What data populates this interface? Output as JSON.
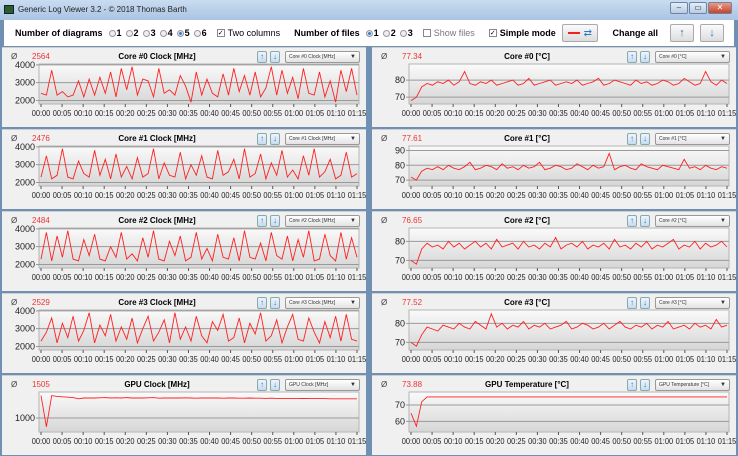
{
  "window": {
    "title": "Generic Log Viewer 3.2 - © 2018 Thomas Barth",
    "buttons": [
      "–",
      "▭",
      "✕"
    ]
  },
  "toolbar": {
    "diagrams_label": "Number of diagrams",
    "diagram_options": [
      "1",
      "2",
      "3",
      "4",
      "5",
      "6"
    ],
    "diagrams_selected": "5",
    "two_columns_label": "Two columns",
    "two_columns_checked": true,
    "files_label": "Number of files",
    "file_options": [
      "1",
      "2",
      "3"
    ],
    "files_selected": "1",
    "show_files_label": "Show files",
    "show_files_checked": false,
    "simple_mode_label": "Simple mode",
    "simple_mode_checked": true,
    "change_all_label": "Change all"
  },
  "avg_symbol": "Ø",
  "x_ticks": [
    "00:00",
    "00:05",
    "00:10",
    "00:15",
    "00:20",
    "00:25",
    "00:30",
    "00:35",
    "00:40",
    "00:45",
    "00:50",
    "00:55",
    "01:00",
    "01:05",
    "01:10",
    "01:15"
  ],
  "chart_data": [
    {
      "type": "line",
      "title": "Core #0 Clock [MHz]",
      "avg": "2564",
      "selector": "Core #0 Clock [MHz]",
      "ylim": [
        1800,
        4050
      ],
      "yticks": [
        2000,
        3000,
        4000
      ],
      "values": [
        2400,
        2300,
        3700,
        2300,
        2500,
        2200,
        2300,
        3100,
        2200,
        3200,
        2300,
        3300,
        2400,
        3600,
        2200,
        3800,
        2600,
        3900,
        2300,
        3200,
        3100,
        2200,
        3800,
        2400,
        2600,
        2300,
        3400,
        2800,
        1900,
        3600,
        2300,
        3200,
        2400,
        2200,
        3500,
        2300,
        3800,
        2500,
        3400,
        2300,
        3600,
        2200,
        2700,
        3900,
        2300,
        3700,
        2400,
        3300,
        2100,
        3800,
        2400,
        2300,
        3600,
        2200,
        3100,
        1900,
        3700,
        2500,
        3800,
        2300
      ]
    },
    {
      "type": "line",
      "title": "Core #0 [°C]",
      "avg": "77.34",
      "selector": "Core #0 [°C]",
      "ylim": [
        66,
        89.4
      ],
      "yticks": [
        70,
        80
      ],
      "values": [
        68,
        70,
        76,
        78,
        77,
        79,
        78,
        80,
        77,
        79,
        85,
        78,
        77,
        79,
        78,
        80,
        77,
        78,
        79,
        80,
        77,
        78,
        81,
        77,
        78,
        79,
        80,
        77,
        78,
        79,
        78,
        80,
        77,
        78,
        79,
        81,
        77,
        78,
        80,
        79,
        78,
        77,
        80,
        78,
        79,
        77,
        78,
        80,
        79,
        77,
        78,
        81,
        79,
        77,
        78,
        85,
        79,
        77,
        80,
        78
      ]
    },
    {
      "type": "line",
      "title": "Core #1 Clock [MHz]",
      "avg": "2476",
      "selector": "Core #1 Clock [MHz]",
      "ylim": [
        1800,
        4050
      ],
      "yticks": [
        2000,
        3000,
        4000
      ],
      "values": [
        2300,
        3500,
        2200,
        2400,
        3900,
        2300,
        2200,
        3200,
        2500,
        2300,
        3800,
        2400,
        3300,
        2200,
        3600,
        2300,
        2900,
        2200,
        3400,
        2300,
        2500,
        3900,
        2200,
        3100,
        2400,
        2300,
        3700,
        2200,
        3000,
        2400,
        3500,
        2300,
        2200,
        3800,
        2400,
        2600,
        3300,
        2200,
        3900,
        2300,
        2500,
        3600,
        2200,
        3100,
        2400,
        3800,
        2300,
        2700,
        2200,
        3500,
        2400,
        3900,
        2300,
        2600,
        3300,
        2200,
        2400,
        3700,
        2300,
        2500
      ]
    },
    {
      "type": "line",
      "title": "Core #1 [°C]",
      "avg": "77.61",
      "selector": "Core #1 [°C]",
      "ylim": [
        66,
        93
      ],
      "yticks": [
        70,
        80,
        90
      ],
      "values": [
        72,
        70,
        76,
        78,
        77,
        79,
        77,
        80,
        78,
        77,
        79,
        82,
        77,
        78,
        80,
        79,
        77,
        81,
        78,
        79,
        77,
        80,
        78,
        79,
        82,
        77,
        78,
        80,
        79,
        77,
        78,
        81,
        79,
        77,
        80,
        78,
        79,
        88,
        77,
        79,
        80,
        78,
        77,
        81,
        79,
        78,
        77,
        80,
        79,
        78,
        77,
        84,
        78,
        79,
        77,
        80,
        78,
        77,
        79,
        78
      ]
    },
    {
      "type": "line",
      "title": "Core #2 Clock [MHz]",
      "avg": "2484",
      "selector": "Core #2 Clock [MHz]",
      "ylim": [
        1800,
        4050
      ],
      "yticks": [
        2000,
        3000,
        4000
      ],
      "values": [
        2300,
        3800,
        2200,
        3600,
        2400,
        3900,
        2300,
        2200,
        3400,
        2500,
        3700,
        2300,
        2200,
        3000,
        2400,
        3800,
        2300,
        2600,
        2200,
        3500,
        2400,
        3900,
        2300,
        2200,
        3300,
        2500,
        3600,
        2200,
        2400,
        3800,
        2300,
        2900,
        2200,
        3700,
        2400,
        2300,
        3500,
        2200,
        3900,
        2400,
        2300,
        3200,
        2200,
        3800,
        2500,
        2300,
        3600,
        2200,
        3400,
        2400,
        3900,
        2200,
        2300,
        3700,
        2500,
        2200,
        3800,
        2300,
        3500,
        2400
      ]
    },
    {
      "type": "line",
      "title": "Core #2 [°C]",
      "avg": "76.65",
      "selector": "Core #2 [°C]",
      "ylim": [
        66,
        87
      ],
      "yticks": [
        70,
        80
      ],
      "values": [
        70,
        68,
        76,
        79,
        77,
        78,
        76,
        80,
        77,
        79,
        76,
        78,
        80,
        77,
        79,
        76,
        81,
        77,
        78,
        79,
        76,
        80,
        77,
        78,
        76,
        79,
        77,
        82,
        76,
        78,
        79,
        77,
        80,
        76,
        78,
        77,
        79,
        76,
        81,
        77,
        78,
        76,
        79,
        77,
        80,
        76,
        78,
        77,
        79,
        81,
        76,
        78,
        77,
        80,
        76,
        79,
        77,
        78,
        80,
        77
      ]
    },
    {
      "type": "line",
      "title": "Core #3 Clock [MHz]",
      "avg": "2529",
      "selector": "Core #3 Clock [MHz]",
      "ylim": [
        1800,
        4050
      ],
      "yticks": [
        2000,
        3000,
        4000
      ],
      "values": [
        2300,
        2800,
        3600,
        2200,
        3300,
        2500,
        3700,
        2300,
        2900,
        3900,
        2200,
        3200,
        2600,
        3800,
        2300,
        3100,
        2400,
        3600,
        2200,
        3000,
        3700,
        2300,
        2800,
        3500,
        2200,
        3900,
        2400,
        3100,
        2300,
        3700,
        2600,
        2200,
        3400,
        2900,
        3800,
        2300,
        2500,
        3600,
        2200,
        3300,
        2700,
        3900,
        2300,
        2600,
        3500,
        2200,
        3100,
        3800,
        2400,
        2300,
        3600,
        2800,
        2200,
        3400,
        2500,
        3700,
        2300,
        3800,
        2400,
        2300
      ]
    },
    {
      "type": "line",
      "title": "Core #3 [°C]",
      "avg": "77.52",
      "selector": "Core #3 [°C]",
      "ylim": [
        66,
        87
      ],
      "yticks": [
        70,
        80
      ],
      "values": [
        70,
        68,
        74,
        78,
        77,
        76,
        79,
        78,
        77,
        80,
        78,
        77,
        81,
        79,
        77,
        85,
        78,
        80,
        77,
        79,
        78,
        81,
        77,
        79,
        78,
        80,
        77,
        78,
        79,
        81,
        77,
        78,
        80,
        79,
        77,
        78,
        80,
        77,
        79,
        81,
        78,
        77,
        79,
        78,
        80,
        77,
        79,
        78,
        81,
        77,
        78,
        79,
        77,
        80,
        78,
        79,
        77,
        82,
        78,
        79
      ]
    },
    {
      "type": "line",
      "title": "GPU Clock [MHz]",
      "avg": "1505",
      "selector": "GPU Clock [MHz]",
      "ylim": [
        650,
        1650
      ],
      "yticks": [
        1000
      ],
      "values": [
        1560,
        780,
        1560,
        1540,
        1530,
        1520,
        1510,
        1480,
        1500,
        1500,
        1500,
        1505,
        1510,
        1500,
        1505,
        1500,
        1510,
        1500,
        1500,
        1500,
        1505,
        1510,
        1495,
        1500,
        1500,
        1500,
        1500,
        1505,
        1500,
        1495,
        1500,
        1500,
        1500,
        1500,
        1495,
        1500,
        1500,
        1495,
        1495,
        1500,
        1495,
        1495,
        1490,
        1495,
        1490,
        1490,
        1490,
        1490,
        1485,
        1490,
        1485,
        1485,
        1485,
        1485,
        1480,
        1480,
        1480,
        1480,
        1480,
        1480
      ]
    },
    {
      "type": "line",
      "title": "GPU Temperature [°C]",
      "avg": "73.88",
      "selector": "GPU Temperature [°C]",
      "ylim": [
        53.5,
        78
      ],
      "yticks": [
        60,
        70
      ],
      "values": [
        65,
        57,
        72,
        75,
        75,
        75,
        75,
        75,
        75,
        75,
        75,
        75,
        75,
        75,
        75,
        75,
        75,
        75,
        75,
        75,
        75,
        75,
        75,
        75,
        75,
        75,
        75,
        75,
        75,
        75,
        75,
        75,
        75,
        75,
        75,
        75,
        75,
        75,
        75,
        75,
        75,
        75,
        75,
        75,
        75,
        75,
        75,
        75,
        75,
        75,
        75,
        75,
        75,
        75,
        75,
        75,
        75,
        75,
        75,
        75
      ]
    }
  ],
  "colors": {
    "line": "#ff2020",
    "avg": "#e33333",
    "grid": "#9a9a9a"
  }
}
